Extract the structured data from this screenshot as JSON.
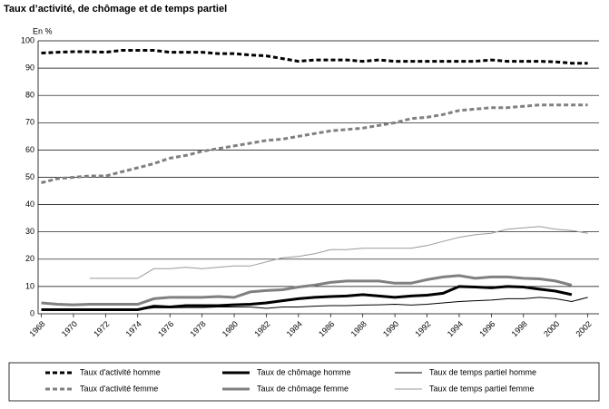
{
  "chart_data": {
    "type": "line",
    "title": "Taux d’activité, de chômage et de temps partiel",
    "y_label": "En %",
    "x": [
      1968,
      1969,
      1970,
      1971,
      1972,
      1973,
      1974,
      1975,
      1976,
      1977,
      1978,
      1979,
      1980,
      1981,
      1982,
      1983,
      1984,
      1985,
      1986,
      1987,
      1988,
      1989,
      1990,
      1991,
      1992,
      1993,
      1994,
      1995,
      1996,
      1997,
      1998,
      1999,
      2000,
      2001,
      2002
    ],
    "xlim": [
      1967.8,
      2002.7
    ],
    "xticks": [
      1968,
      1970,
      1972,
      1974,
      1976,
      1978,
      1980,
      1982,
      1984,
      1986,
      1988,
      1990,
      1992,
      1994,
      1996,
      1998,
      2000,
      2002
    ],
    "ylim": [
      0,
      100
    ],
    "yticks": [
      0,
      10,
      20,
      30,
      40,
      50,
      60,
      70,
      80,
      90,
      100
    ],
    "grid": true,
    "legend": "bottom",
    "series": [
      {
        "name": "Taux d'activité homme",
        "color": "#000000",
        "style": "dashed",
        "width": 3,
        "values": [
          95.5,
          95.8,
          96,
          96,
          95.8,
          96.5,
          96.5,
          96.5,
          95.8,
          95.8,
          95.8,
          95.3,
          95.3,
          94.8,
          94.5,
          93.5,
          92.5,
          93,
          93,
          93,
          92.5,
          93,
          92.5,
          92.5,
          92.5,
          92.5,
          92.5,
          92.5,
          93,
          92.5,
          92.5,
          92.5,
          92.3,
          91.8,
          91.8
        ]
      },
      {
        "name": "Taux de chômage homme",
        "color": "#000000",
        "style": "solid",
        "width": 3,
        "values": [
          1.5,
          1.5,
          1.5,
          1.5,
          1.5,
          1.5,
          1.5,
          2.8,
          2.5,
          3,
          3,
          3,
          3.3,
          3.5,
          4,
          4.8,
          5.5,
          6,
          6.3,
          6.5,
          7,
          6.5,
          6,
          6.5,
          6.8,
          7.5,
          10,
          9.8,
          9.5,
          10,
          9.8,
          9,
          8.3,
          7,
          null
        ]
      },
      {
        "name": "Taux de temps partiel homme",
        "color": "#000000",
        "style": "solid",
        "width": 1,
        "values": [
          1.5,
          1.5,
          1.5,
          1.5,
          1.5,
          1.5,
          1.5,
          2.2,
          2.2,
          2.3,
          2.3,
          2.5,
          2.5,
          2.5,
          2,
          2.5,
          2.5,
          2.8,
          3,
          3,
          3.2,
          3.3,
          3.5,
          3.2,
          3.5,
          4,
          4.5,
          4.8,
          5,
          5.5,
          5.5,
          6,
          5.5,
          4.5,
          6
        ]
      },
      {
        "name": "Taux d'activité femme",
        "color": "#808080",
        "style": "dashed",
        "width": 3,
        "values": [
          48,
          49.5,
          50,
          50.5,
          50.5,
          52,
          53.5,
          55,
          57,
          58,
          59.5,
          60.5,
          61.5,
          62.5,
          63.5,
          64,
          65,
          66,
          67,
          67.5,
          68,
          69,
          70,
          71.5,
          72,
          73,
          74.5,
          75,
          75.5,
          75.5,
          76,
          76.5,
          76.5,
          76.5,
          76.5
        ]
      },
      {
        "name": "Taux de chômage femme",
        "color": "#808080",
        "style": "solid",
        "width": 3,
        "values": [
          4,
          3.5,
          3.3,
          3.5,
          3.5,
          3.5,
          3.5,
          5.5,
          6,
          6,
          6,
          6.3,
          6,
          8,
          8.5,
          8.8,
          9.8,
          10.5,
          11.5,
          12,
          12,
          12,
          11.2,
          11.2,
          12.5,
          13.5,
          14,
          13,
          13.5,
          13.5,
          13,
          12.8,
          12,
          10.5,
          null
        ]
      },
      {
        "name": "Taux de temps partiel femme",
        "color": "#999999",
        "style": "solid",
        "width": 1,
        "values": [
          null,
          null,
          null,
          13,
          13,
          13,
          13,
          16.5,
          16.5,
          17,
          16.5,
          17,
          17.5,
          17.5,
          19,
          20.5,
          21,
          22,
          23.5,
          23.5,
          24,
          24,
          24,
          24,
          25,
          26.5,
          28,
          29,
          29.5,
          31,
          31.5,
          32,
          31,
          30.5,
          29.5
        ]
      }
    ]
  }
}
